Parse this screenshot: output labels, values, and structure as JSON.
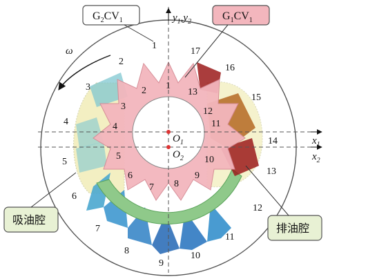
{
  "callouts": {
    "g2cv1": {
      "main": "G",
      "sub1": "2",
      "mid": "CV",
      "sub2": "1",
      "pointer_label": "1"
    },
    "g1cv1": {
      "main": "G",
      "sub1": "1",
      "mid": "CV",
      "sub2": "1"
    },
    "suction": "吸油腔",
    "discharge": "排油腔"
  },
  "rotation_symbol": "ω",
  "axes": {
    "y_label": "y",
    "y_sub1": "1",
    "y_sep": ",",
    "y2_label": "y",
    "y_sub2": "2",
    "x1_label": "x",
    "x1_sub": "1",
    "x2_label": "x",
    "x2_sub": "2"
  },
  "centers": {
    "o1": {
      "label": "O",
      "sub": "1"
    },
    "o2": {
      "label": "O",
      "sub": "2"
    }
  },
  "outer_gear_teeth": [
    "1",
    "2",
    "3",
    "4",
    "5",
    "6",
    "7",
    "8",
    "9",
    "10",
    "11",
    "12",
    "13",
    "14",
    "15",
    "16",
    "17"
  ],
  "inner_gear_teeth": [
    "1",
    "2",
    "3",
    "4",
    "5",
    "6",
    "7",
    "8",
    "9",
    "10",
    "11",
    "12",
    "13"
  ],
  "colors": {
    "inner_gear": "#f3b6bd",
    "suction_zone": "#f1edb8",
    "discharge_zone": "#b8702c",
    "arc_band": "#8fc98a",
    "teal_teeth": "#7fc7d0",
    "blue_teeth": "#2c7fc4",
    "red_tooth": "#9b1b1b",
    "callout_pink": "#f3b6bd"
  }
}
